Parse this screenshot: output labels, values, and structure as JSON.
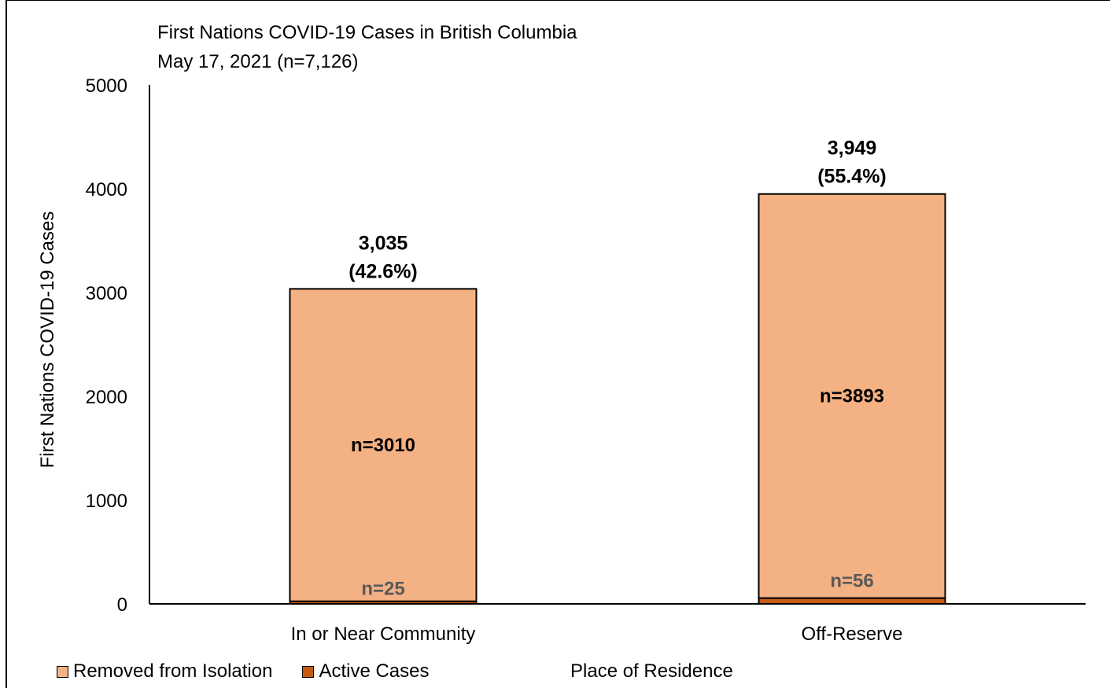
{
  "chart_data": {
    "type": "bar",
    "stacked": true,
    "title": "First Nations COVID-19 Cases in British Columbia",
    "subtitle": "May 17, 2021 (n=7,126)",
    "ylabel": "First Nations COVID-19 Cases",
    "xlabel": "Place of Residence",
    "ylim": [
      0,
      5000
    ],
    "yticks": [
      "0",
      "1000",
      "2000",
      "3000",
      "4000",
      "5000"
    ],
    "categories": [
      "In or Near Community",
      "Off-Reserve"
    ],
    "series": [
      {
        "name": "Active Cases",
        "values": [
          25,
          56
        ],
        "color": "#c55a11",
        "labels": [
          "n=25",
          "n=56"
        ]
      },
      {
        "name": "Removed from Isolation",
        "values": [
          3010,
          3893
        ],
        "color": "#f4b183",
        "labels": [
          "n=3010",
          "n=3893"
        ]
      }
    ],
    "totals": [
      {
        "count": "3,035",
        "percent": "(42.6%)"
      },
      {
        "count": "3,949",
        "percent": "(55.4%)"
      }
    ],
    "legend": [
      "Removed from Isolation",
      "Active Cases"
    ],
    "legend_position": "bottom-left",
    "grid": false
  }
}
